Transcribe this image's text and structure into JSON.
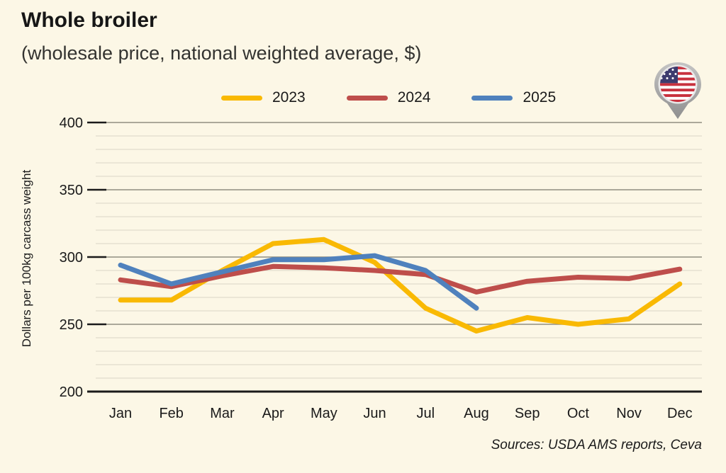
{
  "header": {
    "title": "Whole broiler",
    "subtitle": "(wholesale price, national weighted average, $)"
  },
  "legend": [
    {
      "label": "2023",
      "color": "#F9B903"
    },
    {
      "label": "2024",
      "color": "#BE4E4B"
    },
    {
      "label": "2025",
      "color": "#4F81BD"
    }
  ],
  "flag": {
    "name": "usa-flag-pin",
    "stripe_red": "#C8313E",
    "canton_blue": "#3C3B6E",
    "pin_gray": "#A9A9A9"
  },
  "footer": {
    "sources": "Sources: USDA AMS reports, Ceva"
  },
  "chart_data": {
    "type": "line",
    "title": "Whole broiler",
    "subtitle": "(wholesale price, national weighted average, $)",
    "ylabel": "Dollars per 100kg carcass weight",
    "xlabel": "",
    "ylim": [
      200,
      400
    ],
    "yticks": [
      200,
      250,
      300,
      350,
      400
    ],
    "minor_grid_step": 10,
    "grid": "horizontal",
    "legend_position": "top",
    "categories": [
      "Jan",
      "Feb",
      "Mar",
      "Apr",
      "May",
      "Jun",
      "Jul",
      "Aug",
      "Sep",
      "Oct",
      "Nov",
      "Dec"
    ],
    "series": [
      {
        "name": "2023",
        "color": "#F9B903",
        "values": [
          268,
          268,
          290,
          310,
          313,
          296,
          262,
          245,
          255,
          250,
          254,
          280
        ]
      },
      {
        "name": "2024",
        "color": "#BE4E4B",
        "values": [
          283,
          278,
          286,
          293,
          292,
          290,
          287,
          274,
          282,
          285,
          284,
          291
        ]
      },
      {
        "name": "2025",
        "color": "#4F81BD",
        "values": [
          294,
          280,
          289,
          298,
          298,
          301,
          290,
          262,
          null,
          null,
          null,
          null
        ]
      }
    ],
    "colors": {
      "background": "#FCF7E6",
      "minor_grid": "#DAD6C7",
      "major_grid": "#908D81",
      "axis": "#1A1A1A"
    }
  }
}
